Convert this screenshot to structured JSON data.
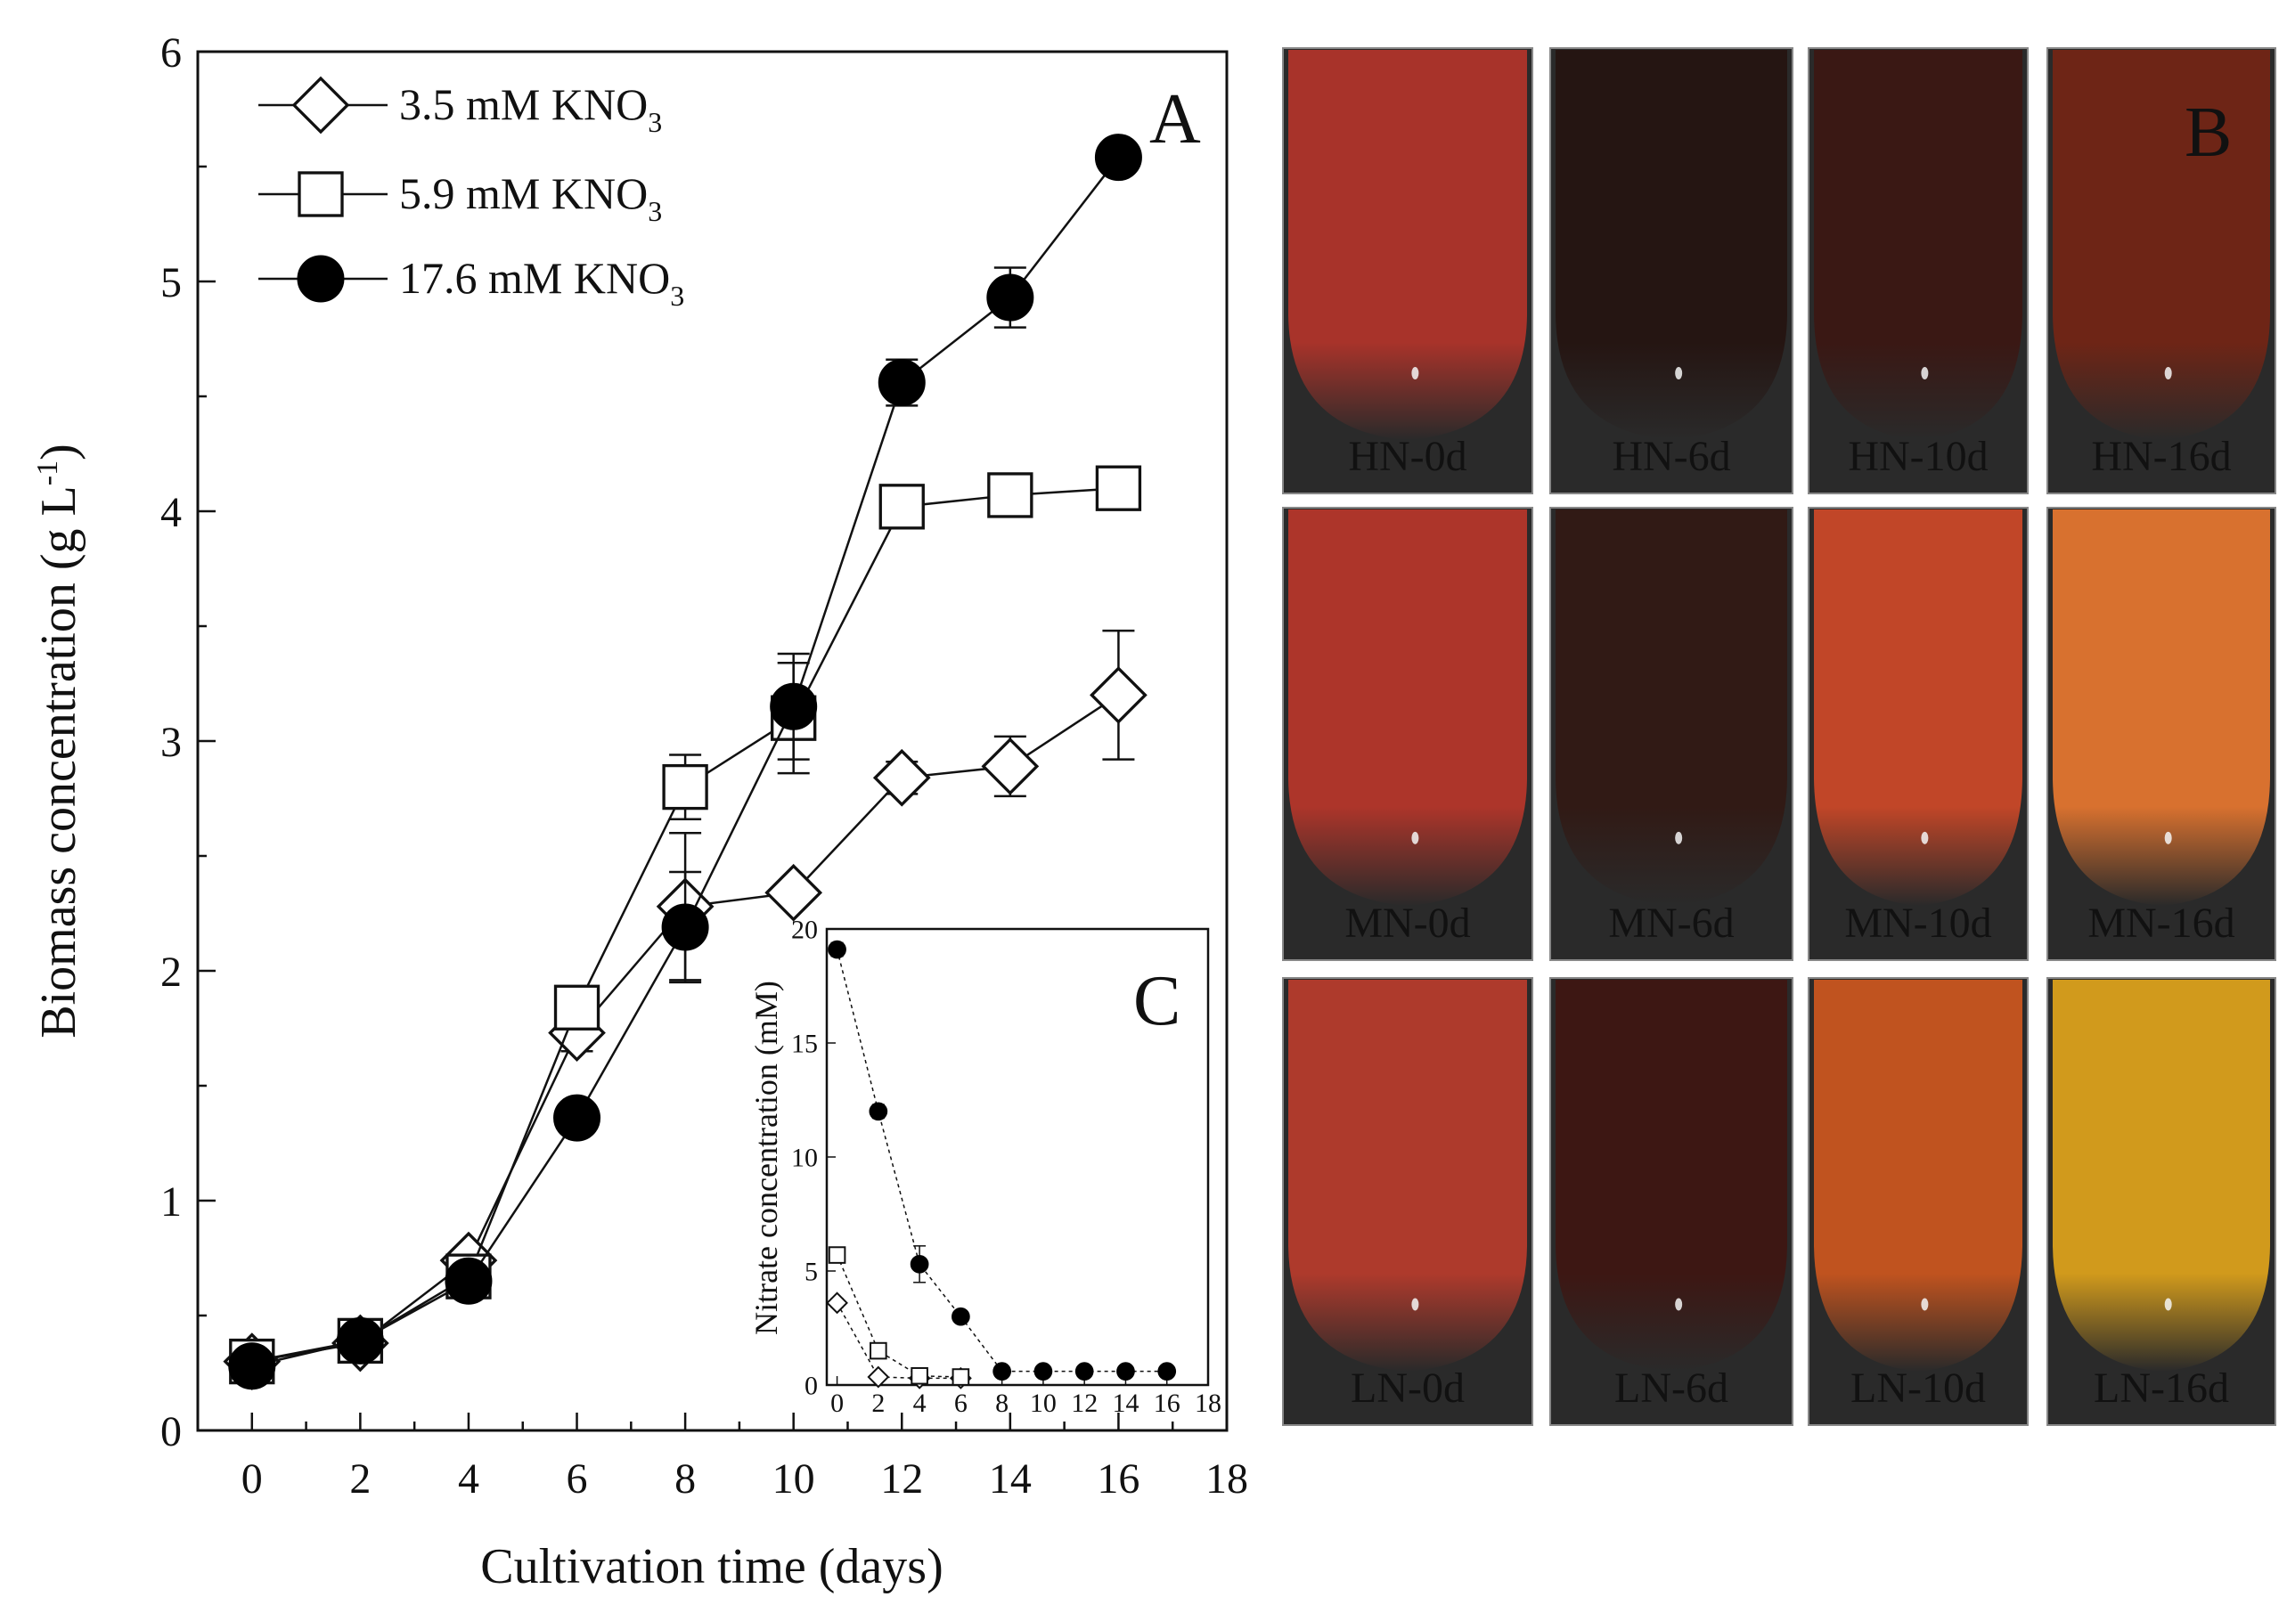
{
  "chart_data": [
    {
      "panel": "A",
      "type": "line",
      "xlabel": "Cultivation time (days)",
      "ylabel": "Biomass concentration (g L-1)",
      "xlim": [
        -1,
        18
      ],
      "ylim": [
        0,
        6
      ],
      "xticks": [
        0,
        2,
        4,
        6,
        8,
        10,
        12,
        14,
        16,
        18
      ],
      "yticks": [
        0,
        1,
        2,
        3,
        4,
        5,
        6
      ],
      "legend_position": "top-left",
      "series": [
        {
          "name": "3.5 mM KNO3",
          "marker": "diamond-open",
          "x": [
            0,
            2,
            4,
            6,
            8,
            10,
            12,
            14,
            16
          ],
          "values": [
            0.3,
            0.38,
            0.74,
            1.73,
            2.28,
            2.34,
            2.84,
            2.89,
            3.2
          ],
          "errors": [
            0.03,
            0.03,
            0.05,
            0.08,
            0.32,
            0.05,
            0.07,
            0.13,
            0.28
          ]
        },
        {
          "name": "5.9 mM KNO3",
          "marker": "square-open",
          "x": [
            0,
            2,
            4,
            6,
            8,
            10,
            12,
            14,
            16
          ],
          "values": [
            0.3,
            0.39,
            0.67,
            1.84,
            2.8,
            3.1,
            4.02,
            4.07,
            4.1
          ],
          "errors": [
            0.03,
            0.03,
            0.04,
            0.06,
            0.14,
            0.24,
            0.07,
            0.04,
            0.03
          ]
        },
        {
          "name": "17.6 mM KNO3",
          "marker": "circle-filled",
          "x": [
            0,
            2,
            4,
            6,
            8,
            10,
            12,
            14,
            16
          ],
          "values": [
            0.28,
            0.39,
            0.65,
            1.36,
            2.19,
            3.15,
            4.56,
            4.93,
            5.54
          ],
          "errors": [
            0.03,
            0.03,
            0.04,
            0.05,
            0.24,
            0.23,
            0.1,
            0.13,
            0.05
          ]
        }
      ],
      "legend_labels": [
        {
          "base": "3.5 mM KNO",
          "sub": "3"
        },
        {
          "base": "5.9 mM KNO",
          "sub": "3"
        },
        {
          "base": "17.6 mM KNO",
          "sub": "3"
        }
      ],
      "ylabel_parts": {
        "base": "Biomass concentration (g L",
        "sup": "-1",
        "end": ")"
      }
    },
    {
      "panel": "C",
      "type": "line",
      "xlabel": "",
      "ylabel": "Nitrate concentration (mM)",
      "xlim": [
        -0.5,
        18
      ],
      "ylim": [
        0,
        20
      ],
      "xticks": [
        0,
        2,
        4,
        6,
        8,
        10,
        12,
        14,
        16,
        18
      ],
      "yticks": [
        0,
        5,
        10,
        15,
        20
      ],
      "series": [
        {
          "name": "3.5 mM KNO3",
          "marker": "diamond-open",
          "x": [
            0,
            2,
            4,
            6
          ],
          "values": [
            3.6,
            0.35,
            0.3,
            0.3
          ],
          "errors": [
            0.2,
            0.1,
            0.1,
            0.1
          ]
        },
        {
          "name": "5.9 mM KNO3",
          "marker": "square-open",
          "x": [
            0,
            2,
            4,
            6
          ],
          "values": [
            5.7,
            1.5,
            0.4,
            0.35
          ],
          "errors": [
            0.3,
            0.1,
            0.1,
            0.1
          ]
        },
        {
          "name": "17.6 mM KNO3",
          "marker": "circle-filled",
          "x": [
            0,
            2,
            4,
            6,
            8,
            10,
            12,
            14,
            16
          ],
          "values": [
            19.1,
            12.0,
            5.3,
            3.0,
            0.6,
            0.6,
            0.6,
            0.6,
            0.6
          ],
          "errors": [
            0.3,
            0.3,
            0.8,
            0.2,
            0.1,
            0.1,
            0.1,
            0.1,
            0.1
          ]
        }
      ]
    }
  ],
  "panel_letters": {
    "a": "A",
    "b": "B",
    "c": "C"
  },
  "photo_panel": {
    "labels": [
      [
        "HN-0d",
        "HN-6d",
        "HN-10d",
        "HN-16d"
      ],
      [
        "MN-0d",
        "MN-6d",
        "MN-10d",
        "MN-16d"
      ],
      [
        "LN-0d",
        "LN-6d",
        "LN-10d",
        "LN-16d"
      ]
    ],
    "colors": [
      [
        "#a8332a",
        "#251512",
        "#3a1814",
        "#6e2516"
      ],
      [
        "#ad352a",
        "#311a15",
        "#c14628",
        "#d8712f"
      ],
      [
        "#ae3a2c",
        "#3d1713",
        "#c0531f",
        "#d19a1c"
      ]
    ]
  }
}
